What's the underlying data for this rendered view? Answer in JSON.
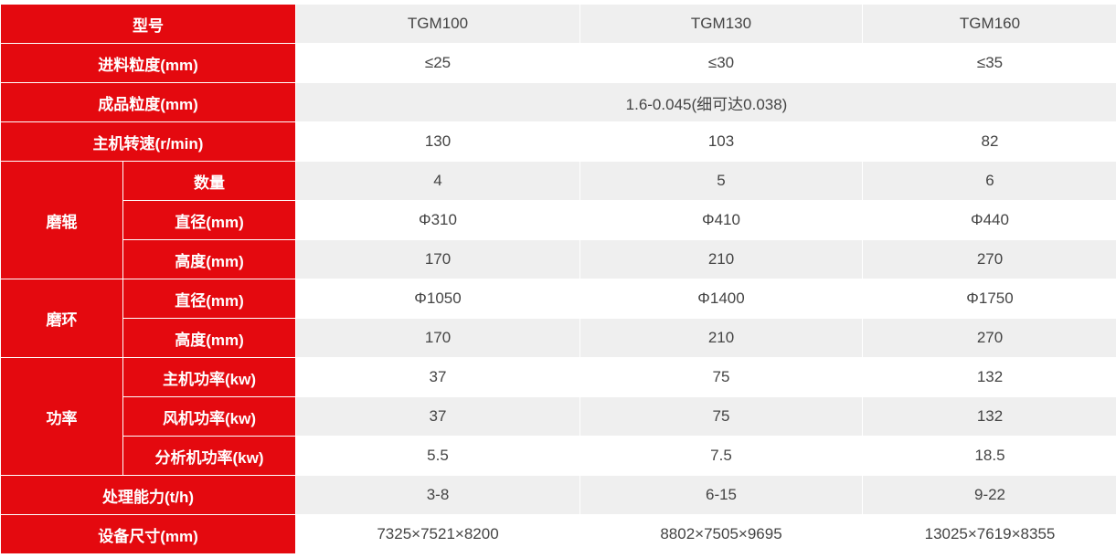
{
  "table": {
    "header": {
      "label": "型号",
      "models": [
        "TGM100",
        "TGM130",
        "TGM160"
      ]
    },
    "rows": [
      {
        "label": "进料粒度(mm)",
        "values": [
          "≤25",
          "≤30",
          "≤35"
        ]
      },
      {
        "label": "成品粒度(mm)",
        "values": [
          "1.6-0.045(细可达0.038)"
        ]
      },
      {
        "label": "主机转速(r/min)",
        "values": [
          "130",
          "103",
          "82"
        ]
      },
      {
        "group": "磨辊",
        "items": [
          {
            "label": "数量",
            "values": [
              "4",
              "5",
              "6"
            ]
          },
          {
            "label": "直径(mm)",
            "values": [
              "Φ310",
              "Φ410",
              "Φ440"
            ]
          },
          {
            "label": "高度(mm)",
            "values": [
              "170",
              "210",
              "270"
            ]
          }
        ]
      },
      {
        "group": "磨环",
        "items": [
          {
            "label": "直径(mm)",
            "values": [
              "Φ1050",
              "Φ1400",
              "Φ1750"
            ]
          },
          {
            "label": "高度(mm)",
            "values": [
              "170",
              "210",
              "270"
            ]
          }
        ]
      },
      {
        "group": "功率",
        "items": [
          {
            "label": "主机功率(kw)",
            "values": [
              "37",
              "75",
              "132"
            ]
          },
          {
            "label": "风机功率(kw)",
            "values": [
              "37",
              "75",
              "132"
            ]
          },
          {
            "label": "分析机功率(kw)",
            "values": [
              "5.5",
              "7.5",
              "18.5"
            ]
          }
        ]
      },
      {
        "label": "处理能力(t/h)",
        "values": [
          "3-8",
          "6-15",
          "9-22"
        ]
      },
      {
        "label": "设备尺寸(mm)",
        "values": [
          "7325×7521×8200",
          "8802×7505×9695",
          "13025×7619×8355"
        ]
      }
    ]
  }
}
